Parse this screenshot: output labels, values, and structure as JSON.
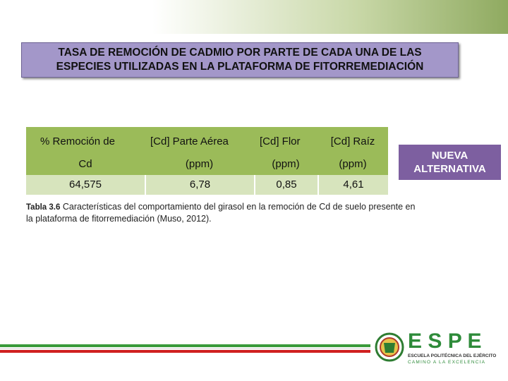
{
  "title": [
    "TASA DE REMOCIÓN DE CADMIO POR PARTE DE CADA UNA DE LAS",
    "ESPECIES UTILIZADAS EN LA PLATAFORMA DE FITORREMEDIACIÓN"
  ],
  "table": {
    "header": [
      [
        "% Remoción de",
        "Cd"
      ],
      [
        "[Cd] Parte Aérea",
        "(ppm)"
      ],
      [
        "[Cd] Flor",
        "(ppm)"
      ],
      [
        "[Cd] Raíz",
        "(ppm)"
      ]
    ],
    "rows": [
      [
        "64,575",
        "6,78",
        "0,85",
        "4,61"
      ]
    ]
  },
  "badge": [
    "NUEVA",
    "ALTERNATIVA"
  ],
  "caption": {
    "label": "Tabla 3.6",
    "text": "Características del comportamiento del girasol en la remoción de Cd de suelo presente en la plataforma de fitorremediación (Muso, 2012)."
  },
  "logo": {
    "name": "E S P E",
    "subtitle": "ESCUELA POLITÉCNICA DEL EJÉRCITO",
    "motto": "CAMINO A LA EXCELENCIA"
  }
}
